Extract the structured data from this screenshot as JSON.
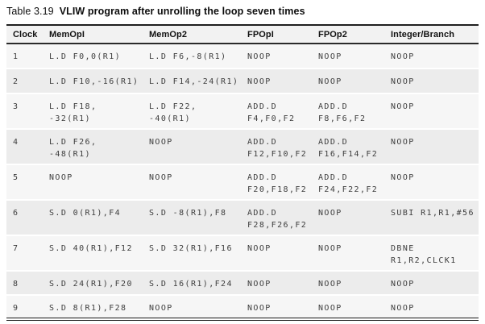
{
  "caption": {
    "label": "Table 3.19",
    "title": "VLIW program after unrolling the loop seven times"
  },
  "table": {
    "columns": [
      "Clock",
      "MemOpI",
      "MemOp2",
      "FPOpI",
      "FPOp2",
      "Integer/Branch"
    ],
    "rows": [
      [
        "1",
        "L.D F0,0(R1)",
        "L.D F6,-8(R1)",
        "NOOP",
        "NOOP",
        "NOOP"
      ],
      [
        "2",
        "L.D F10,-16(R1)",
        "L.D F14,-24(R1)",
        "NOOP",
        "NOOP",
        "NOOP"
      ],
      [
        "3",
        "L.D F18,\n-32(R1)",
        "L.D F22,\n-40(R1)",
        "ADD.D\nF4,F0,F2",
        "ADD.D\nF8,F6,F2",
        "NOOP"
      ],
      [
        "4",
        "L.D F26,\n-48(R1)",
        "NOOP",
        "ADD.D\nF12,F10,F2",
        "ADD.D\nF16,F14,F2",
        "NOOP"
      ],
      [
        "5",
        "NOOP",
        "NOOP",
        "ADD.D\nF20,F18,F2",
        "ADD.D\nF24,F22,F2",
        "NOOP"
      ],
      [
        "6",
        "S.D 0(R1),F4",
        "S.D -8(R1),F8",
        "ADD.D\nF28,F26,F2",
        "NOOP",
        "SUBI R1,R1,#56"
      ],
      [
        "7",
        "S.D 40(R1),F12",
        "S.D 32(R1),F16",
        "NOOP",
        "NOOP",
        "DBNE\nR1,R2,CLCK1"
      ],
      [
        "8",
        "S.D 24(R1),F20",
        "S.D 16(R1),F24",
        "NOOP",
        "NOOP",
        "NOOP"
      ],
      [
        "9",
        "S.D 8(R1),F28",
        "NOOP",
        "NOOP",
        "NOOP",
        "NOOP"
      ]
    ]
  }
}
